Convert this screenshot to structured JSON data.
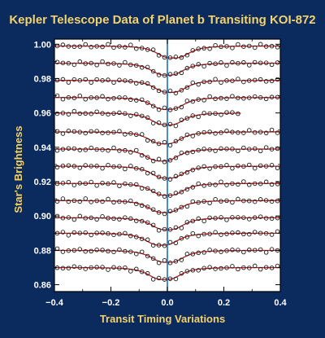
{
  "chart_data": {
    "type": "scatter",
    "title": "Kepler Telescope Data of Planet b Transiting KOI-872",
    "xlabel": "Transit Timing Variations",
    "ylabel": "Star's Brightness",
    "xlim": [
      -0.4,
      0.4
    ],
    "ylim": [
      0.856,
      1.003
    ],
    "x_ticks": [
      "−0.4",
      "−0.2",
      "0.0",
      "0.2",
      "0.4"
    ],
    "x_tick_values": [
      -0.4,
      -0.2,
      0.0,
      0.2,
      0.4
    ],
    "y_ticks": [
      "1.00",
      "0.98",
      "0.96",
      "0.94",
      "0.92",
      "0.90",
      "0.88",
      "0.86"
    ],
    "y_tick_values": [
      1.0,
      0.98,
      0.96,
      0.94,
      0.92,
      0.9,
      0.88,
      0.86
    ],
    "grid": false,
    "reference_line_x": 0.0,
    "series": [
      {
        "baseline": 0.999,
        "center": 0.02,
        "depth": 0.007,
        "xmax": 0.4
      },
      {
        "baseline": 0.989,
        "center": 0.0,
        "depth": 0.007,
        "xmax": 0.4
      },
      {
        "baseline": 0.979,
        "center": 0.01,
        "depth": 0.007,
        "xmax": 0.4
      },
      {
        "baseline": 0.969,
        "center": 0.0,
        "depth": 0.007,
        "xmax": 0.4
      },
      {
        "baseline": 0.96,
        "center": 0.0,
        "depth": 0.007,
        "xmax": 0.26
      },
      {
        "baseline": 0.949,
        "center": -0.01,
        "depth": 0.007,
        "xmax": 0.4
      },
      {
        "baseline": 0.939,
        "center": -0.02,
        "depth": 0.007,
        "xmax": 0.4
      },
      {
        "baseline": 0.929,
        "center": 0.0,
        "depth": 0.007,
        "xmax": 0.4
      },
      {
        "baseline": 0.919,
        "center": 0.0,
        "depth": 0.007,
        "xmax": 0.4
      },
      {
        "baseline": 0.909,
        "center": -0.01,
        "depth": 0.007,
        "xmax": 0.4
      },
      {
        "baseline": 0.899,
        "center": 0.0,
        "depth": 0.007,
        "xmax": 0.4
      },
      {
        "baseline": 0.89,
        "center": -0.02,
        "depth": 0.007,
        "xmax": 0.4
      },
      {
        "baseline": 0.88,
        "center": 0.0,
        "depth": 0.007,
        "xmax": 0.4
      },
      {
        "baseline": 0.87,
        "center": -0.01,
        "depth": 0.007,
        "xmax": 0.4
      }
    ],
    "colors": {
      "background": "#0b2a5e",
      "plot_area": "#ffffff",
      "model_curve": "#b02020",
      "data_points": "#1a1a1a",
      "center_line": "#1f6fb8",
      "title_text": "#f3d36a",
      "tick_text": "#ffffff"
    }
  }
}
